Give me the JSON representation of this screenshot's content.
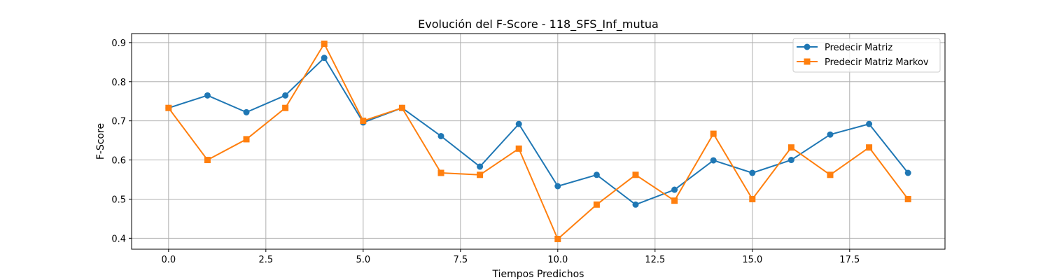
{
  "chart_data": {
    "type": "line",
    "title": "Evolución del F-Score - 118_SFS_Inf_mutua",
    "xlabel": "Tiempos Predichos",
    "ylabel": "F-Score",
    "xlim": [
      -0.95,
      19.95
    ],
    "ylim": [
      0.372,
      0.923
    ],
    "xticks": [
      0.0,
      2.5,
      5.0,
      7.5,
      10.0,
      12.5,
      15.0,
      17.5
    ],
    "xtick_labels": [
      "0.0",
      "2.5",
      "5.0",
      "7.5",
      "10.0",
      "12.5",
      "15.0",
      "17.5"
    ],
    "yticks": [
      0.4,
      0.5,
      0.6,
      0.7,
      0.8,
      0.9
    ],
    "ytick_labels": [
      "0.4",
      "0.5",
      "0.6",
      "0.7",
      "0.8",
      "0.9"
    ],
    "grid": true,
    "legend_position": "top-right",
    "x": [
      0,
      1,
      2,
      3,
      4,
      5,
      6,
      7,
      8,
      9,
      10,
      11,
      12,
      13,
      14,
      15,
      16,
      17,
      18,
      19
    ],
    "series": [
      {
        "name": "Predecir Matriz",
        "color": "#1f77b4",
        "marker": "circle",
        "values": [
          0.733,
          0.765,
          0.722,
          0.765,
          0.861,
          0.696,
          0.733,
          0.661,
          0.583,
          0.692,
          0.533,
          0.562,
          0.486,
          0.524,
          0.599,
          0.567,
          0.6,
          0.665,
          0.692,
          0.567
        ]
      },
      {
        "name": "Predecir Matriz Markov",
        "color": "#ff7f0e",
        "marker": "square",
        "values": [
          0.733,
          0.6,
          0.653,
          0.733,
          0.897,
          0.7,
          0.733,
          0.567,
          0.562,
          0.629,
          0.398,
          0.486,
          0.562,
          0.496,
          0.667,
          0.5,
          0.632,
          0.562,
          0.632,
          0.5
        ]
      }
    ]
  }
}
